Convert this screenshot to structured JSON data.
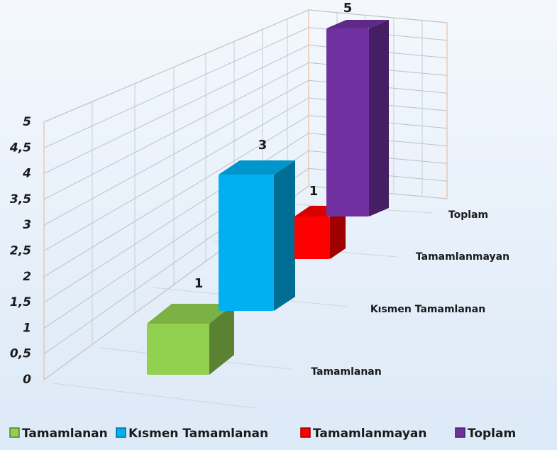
{
  "chart_data": {
    "type": "bar3d",
    "categories": [
      "Tamamlanan",
      "Kısmen Tamamlanan",
      "Tamamlanmayan",
      "Toplam"
    ],
    "values": [
      1,
      3,
      1,
      5
    ],
    "colors": [
      "#92d050",
      "#00b0f0",
      "#ff0000",
      "#7030a0"
    ],
    "ylim": [
      0,
      5
    ],
    "yticks": [
      0,
      {
        "value": 0.5,
        "label": "0,5"
      },
      1,
      {
        "value": 1.5,
        "label": "1,5"
      },
      2,
      {
        "value": 2.5,
        "label": "2,5"
      },
      3,
      {
        "value": 3.5,
        "label": "3,5"
      },
      4,
      {
        "value": 4.5,
        "label": "4,5"
      },
      5
    ],
    "grid": true,
    "legend": "bottom"
  }
}
